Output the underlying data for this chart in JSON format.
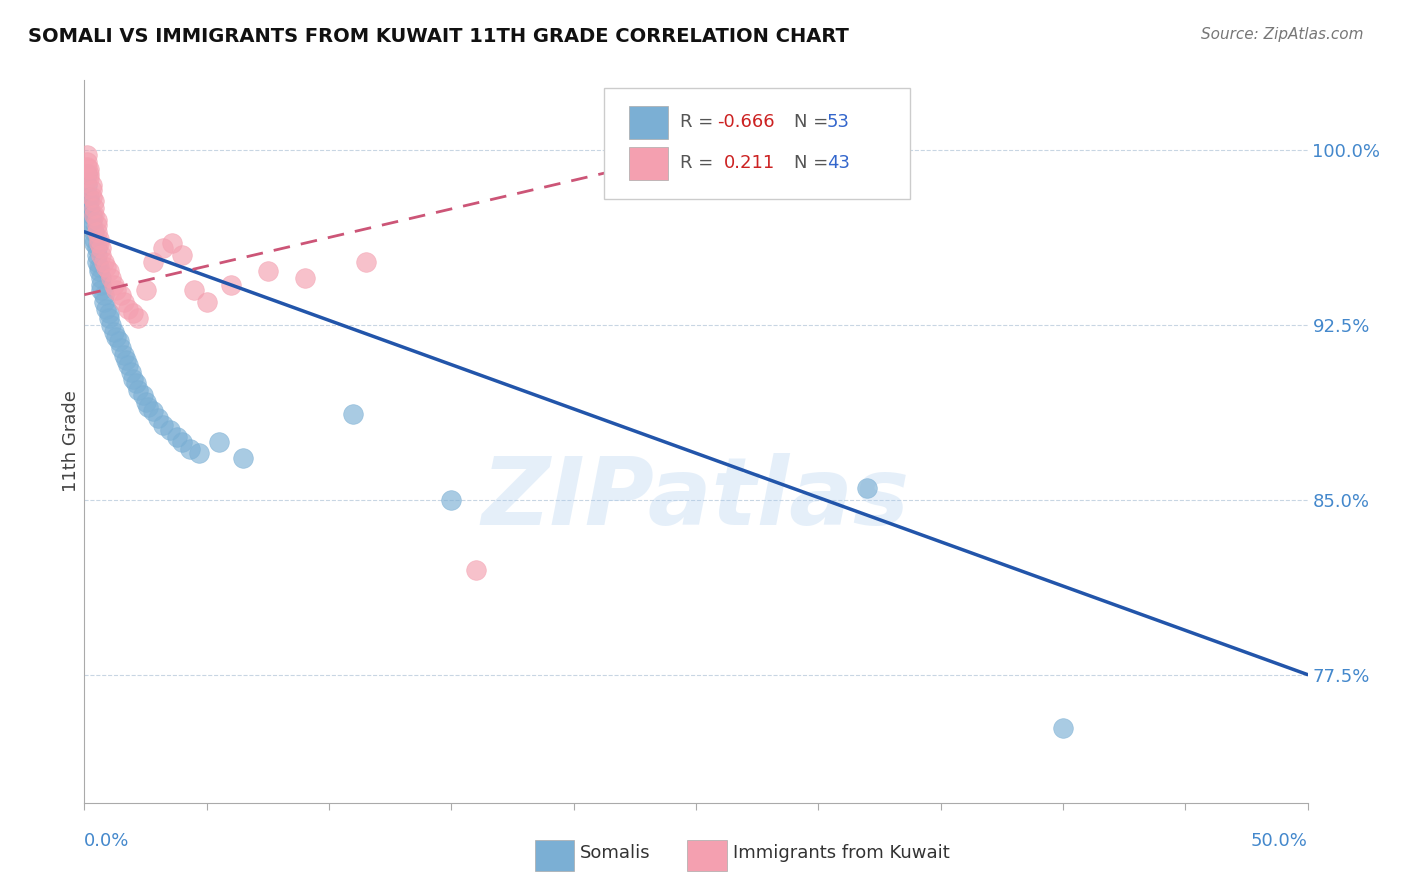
{
  "title": "SOMALI VS IMMIGRANTS FROM KUWAIT 11TH GRADE CORRELATION CHART",
  "source": "Source: ZipAtlas.com",
  "ylabel": "11th Grade",
  "r_blue": -0.666,
  "n_blue": 53,
  "r_pink": 0.211,
  "n_pink": 43,
  "y_tick_labels": [
    "77.5%",
    "85.0%",
    "92.5%",
    "100.0%"
  ],
  "y_ticks": [
    0.775,
    0.85,
    0.925,
    1.0
  ],
  "x_lim": [
    0.0,
    0.5
  ],
  "y_lim": [
    0.72,
    1.03
  ],
  "blue_scatter_x": [
    0.001,
    0.001,
    0.002,
    0.002,
    0.002,
    0.003,
    0.003,
    0.003,
    0.004,
    0.004,
    0.004,
    0.005,
    0.005,
    0.005,
    0.006,
    0.006,
    0.007,
    0.007,
    0.007,
    0.008,
    0.008,
    0.009,
    0.01,
    0.01,
    0.011,
    0.012,
    0.013,
    0.014,
    0.015,
    0.016,
    0.017,
    0.018,
    0.019,
    0.02,
    0.021,
    0.022,
    0.024,
    0.025,
    0.026,
    0.028,
    0.03,
    0.032,
    0.035,
    0.038,
    0.04,
    0.043,
    0.047,
    0.055,
    0.065,
    0.11,
    0.15,
    0.32,
    0.4
  ],
  "blue_scatter_y": [
    0.99,
    0.985,
    0.98,
    0.978,
    0.975,
    0.972,
    0.97,
    0.968,
    0.965,
    0.962,
    0.96,
    0.958,
    0.955,
    0.952,
    0.95,
    0.948,
    0.945,
    0.942,
    0.94,
    0.938,
    0.935,
    0.932,
    0.93,
    0.928,
    0.925,
    0.922,
    0.92,
    0.918,
    0.915,
    0.912,
    0.91,
    0.908,
    0.905,
    0.902,
    0.9,
    0.897,
    0.895,
    0.892,
    0.89,
    0.888,
    0.885,
    0.882,
    0.88,
    0.877,
    0.875,
    0.872,
    0.87,
    0.875,
    0.868,
    0.887,
    0.85,
    0.855,
    0.752
  ],
  "pink_scatter_x": [
    0.001,
    0.001,
    0.001,
    0.002,
    0.002,
    0.002,
    0.003,
    0.003,
    0.003,
    0.004,
    0.004,
    0.004,
    0.005,
    0.005,
    0.005,
    0.006,
    0.006,
    0.007,
    0.007,
    0.008,
    0.009,
    0.01,
    0.011,
    0.012,
    0.013,
    0.015,
    0.016,
    0.018,
    0.02,
    0.022,
    0.025,
    0.028,
    0.032,
    0.036,
    0.04,
    0.045,
    0.05,
    0.06,
    0.075,
    0.09,
    0.115,
    0.16,
    0.22
  ],
  "pink_scatter_y": [
    0.998,
    0.995,
    0.993,
    0.992,
    0.99,
    0.988,
    0.985,
    0.983,
    0.98,
    0.978,
    0.975,
    0.972,
    0.97,
    0.968,
    0.965,
    0.962,
    0.96,
    0.958,
    0.955,
    0.952,
    0.95,
    0.948,
    0.945,
    0.942,
    0.94,
    0.938,
    0.935,
    0.932,
    0.93,
    0.928,
    0.94,
    0.952,
    0.958,
    0.96,
    0.955,
    0.94,
    0.935,
    0.942,
    0.948,
    0.945,
    0.952,
    0.82,
    0.988
  ],
  "blue_line_x": [
    0.0,
    0.5
  ],
  "blue_line_y": [
    0.965,
    0.775
  ],
  "pink_line_x": [
    0.0,
    0.22
  ],
  "pink_line_y": [
    0.938,
    0.992
  ],
  "blue_color": "#7BAFD4",
  "pink_color": "#F4A0B0",
  "blue_line_color": "#2255AA",
  "pink_line_color": "#CC5577",
  "watermark_text": "ZIPatlas",
  "legend_r_blue_label": "R = ",
  "legend_r_blue_val": "-0.666",
  "legend_n_blue": "N = 53",
  "legend_r_pink_label": "R =  ",
  "legend_r_pink_val": "0.211",
  "legend_n_pink": "N = 43"
}
